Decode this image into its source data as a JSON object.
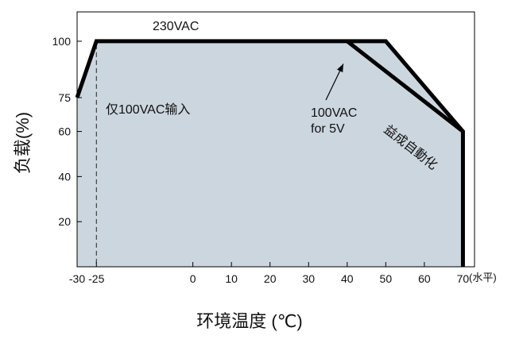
{
  "chart_data": {
    "type": "line",
    "title": "",
    "xlabel": "环境温度 (℃)",
    "ylabel": "负载(%)",
    "x_unit": "(水平)",
    "xlim": [
      -30,
      73
    ],
    "ylim": [
      0,
      113
    ],
    "xticks": [
      -30,
      -25,
      0,
      10,
      20,
      30,
      40,
      50,
      60,
      70
    ],
    "yticks": [
      20,
      40,
      60,
      75,
      100
    ],
    "series": [
      {
        "name": "230VAC",
        "points": [
          [
            -30,
            75
          ],
          [
            -25,
            100
          ],
          [
            50,
            100
          ],
          [
            70,
            60
          ],
          [
            70,
            0
          ]
        ],
        "fill": "#ccd6df",
        "color": "#000000"
      },
      {
        "name": "100VAC for 5V",
        "points": [
          [
            40,
            100
          ],
          [
            70,
            60
          ]
        ],
        "color": "#000000"
      }
    ],
    "reference_lines": [
      {
        "x": -25,
        "style": "dashed",
        "label": "仅100VAC输入"
      }
    ],
    "annotations": {
      "top_label": "230VAC",
      "lower_label_line1": "100VAC",
      "lower_label_line2": "for 5V",
      "dashed_label": "仅100VAC输入",
      "arrow_tip": [
        39,
        90
      ]
    },
    "watermark": "益成自動化"
  }
}
